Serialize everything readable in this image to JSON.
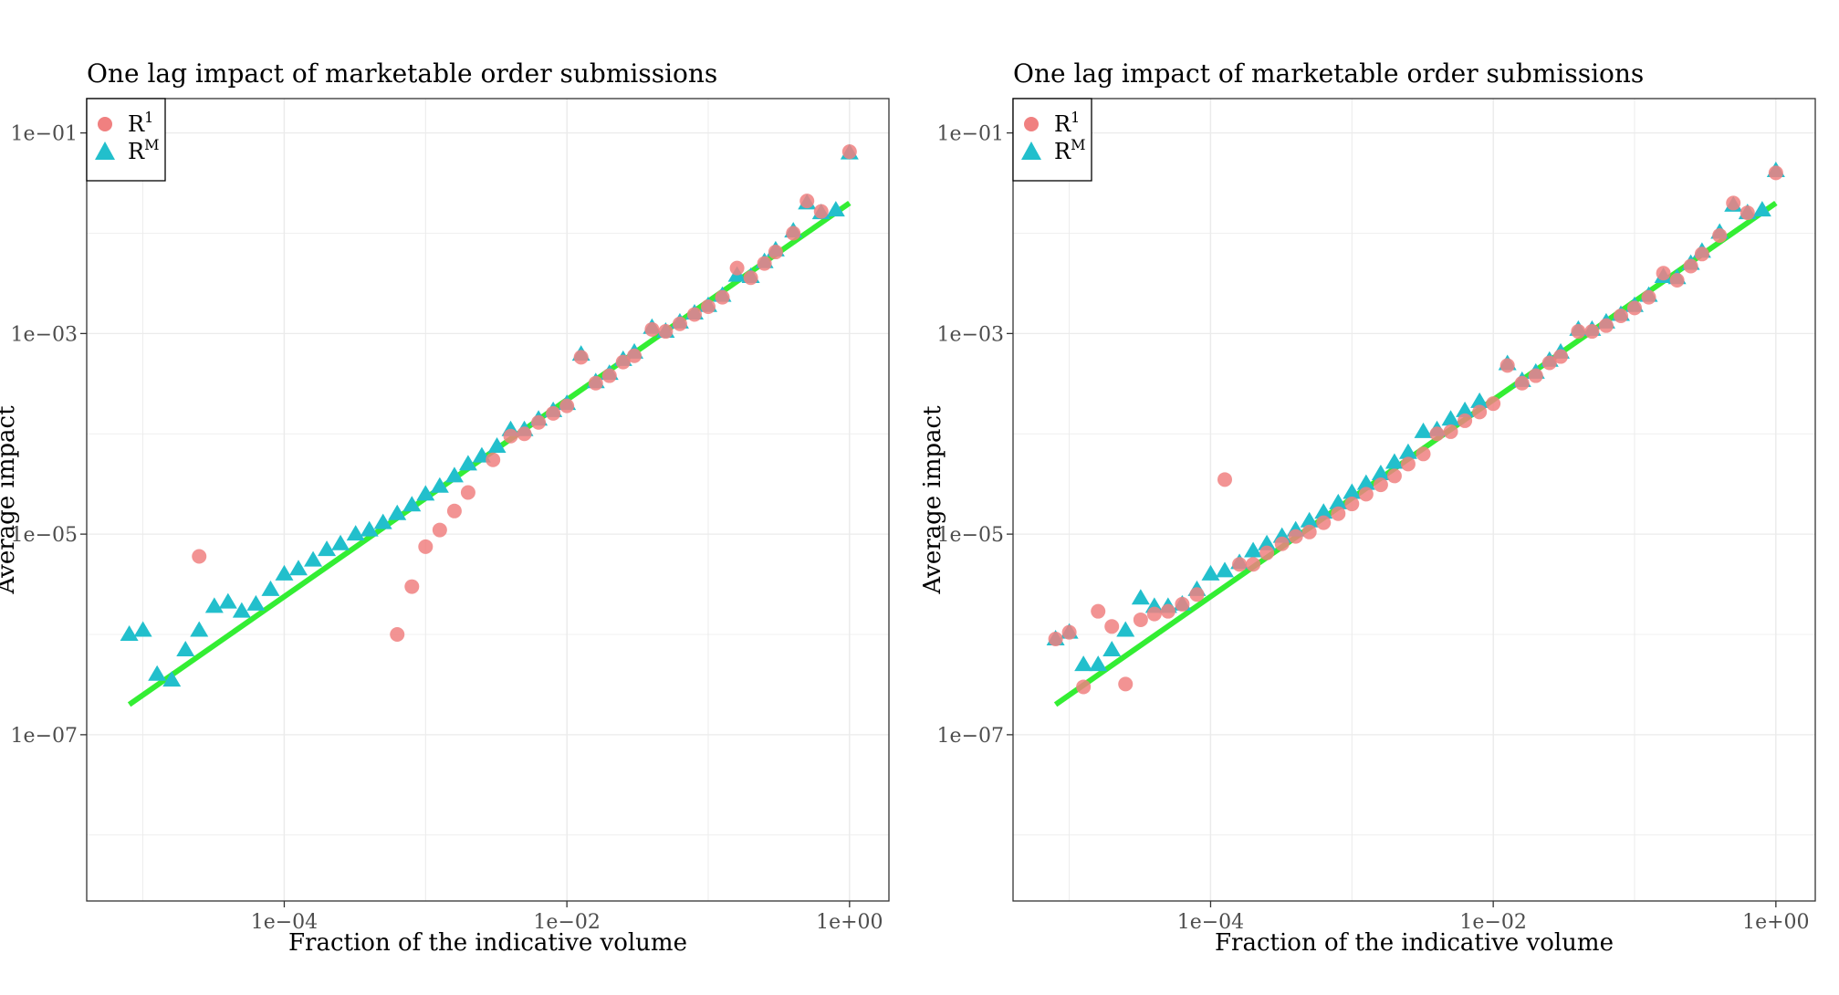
{
  "chart_data": [
    {
      "type": "scatter",
      "title": "One lag impact of marketable order submissions",
      "xlabel": "Fraction of the indicative volume",
      "ylabel": "Average impact",
      "x_scale": "log10",
      "y_scale": "log10",
      "xlim": [
        4e-06,
        1.9
      ],
      "ylim": [
        2.2e-09,
        0.22
      ],
      "x_ticks": [
        0.0001,
        0.01,
        1
      ],
      "x_tick_labels": [
        "1e−04",
        "1e−02",
        "1e+00"
      ],
      "y_ticks": [
        1e-07,
        1e-05,
        0.001,
        0.1
      ],
      "y_tick_labels": [
        "1e−07",
        "1e−05",
        "1e−03",
        "1e−01"
      ],
      "grid": true,
      "legend": {
        "position": "top-left",
        "entries": [
          {
            "base": "R",
            "sup": "1"
          },
          {
            "base": "R",
            "sup": "M"
          }
        ]
      },
      "fit_line": {
        "x": [
          8e-06,
          1.0
        ],
        "y": [
          2e-07,
          0.02
        ],
        "color": "#33ee33"
      },
      "series": [
        {
          "marker": "circle",
          "color": "#f08080",
          "points": [
            [
              2.5e-05,
              6e-06
            ],
            [
              0.00063,
              1e-06
            ],
            [
              0.0008,
              3e-06
            ],
            [
              0.001,
              7.5e-06
            ],
            [
              0.00126,
              1.1e-05
            ],
            [
              0.0016,
              1.7e-05
            ],
            [
              0.002,
              2.6e-05
            ],
            [
              0.003,
              5.5e-05
            ],
            [
              0.004,
              9.5e-05
            ],
            [
              0.005,
              0.0001
            ],
            [
              0.0063,
              0.00013
            ],
            [
              0.008,
              0.00016
            ],
            [
              0.01,
              0.00019
            ],
            [
              0.0126,
              0.00058
            ],
            [
              0.016,
              0.00032
            ],
            [
              0.02,
              0.00038
            ],
            [
              0.025,
              0.00052
            ],
            [
              0.03,
              0.0006
            ],
            [
              0.04,
              0.0011
            ],
            [
              0.05,
              0.00105
            ],
            [
              0.063,
              0.00125
            ],
            [
              0.08,
              0.00155
            ],
            [
              0.1,
              0.00185
            ],
            [
              0.126,
              0.0023
            ],
            [
              0.16,
              0.0045
            ],
            [
              0.2,
              0.0036
            ],
            [
              0.25,
              0.005
            ],
            [
              0.3,
              0.0065
            ],
            [
              0.4,
              0.01
            ],
            [
              0.5,
              0.021
            ],
            [
              0.63,
              0.0165
            ],
            [
              1.0,
              0.065
            ]
          ]
        },
        {
          "marker": "triangle",
          "color": "#22bfcc",
          "points": [
            [
              8e-06,
              1e-06
            ],
            [
              1e-05,
              1.1e-06
            ],
            [
              1.26e-05,
              4e-07
            ],
            [
              1.6e-05,
              3.5e-07
            ],
            [
              2e-05,
              7e-07
            ],
            [
              2.5e-05,
              1.1e-06
            ],
            [
              3.2e-05,
              1.9e-06
            ],
            [
              4e-05,
              2.1e-06
            ],
            [
              5e-05,
              1.7e-06
            ],
            [
              6.3e-05,
              2e-06
            ],
            [
              8e-05,
              2.8e-06
            ],
            [
              0.0001,
              4e-06
            ],
            [
              0.000126,
              4.5e-06
            ],
            [
              0.00016,
              5.5e-06
            ],
            [
              0.0002,
              7e-06
            ],
            [
              0.00025,
              8e-06
            ],
            [
              0.00032,
              1e-05
            ],
            [
              0.0004,
              1.1e-05
            ],
            [
              0.0005,
              1.3e-05
            ],
            [
              0.00063,
              1.6e-05
            ],
            [
              0.0008,
              1.95e-05
            ],
            [
              0.001,
              2.5e-05
            ],
            [
              0.00126,
              3e-05
            ],
            [
              0.0016,
              3.8e-05
            ],
            [
              0.002,
              5e-05
            ],
            [
              0.0025,
              6e-05
            ],
            [
              0.0032,
              7.5e-05
            ],
            [
              0.004,
              0.00011
            ],
            [
              0.005,
              0.00011
            ],
            [
              0.0063,
              0.00014
            ],
            [
              0.008,
              0.00017
            ],
            [
              0.01,
              0.0002
            ],
            [
              0.0126,
              0.00062
            ],
            [
              0.016,
              0.00033
            ],
            [
              0.02,
              0.0004
            ],
            [
              0.025,
              0.00055
            ],
            [
              0.03,
              0.00065
            ],
            [
              0.04,
              0.00115
            ],
            [
              0.05,
              0.00105
            ],
            [
              0.063,
              0.0013
            ],
            [
              0.08,
              0.0016
            ],
            [
              0.1,
              0.0019
            ],
            [
              0.126,
              0.0024
            ],
            [
              0.16,
              0.0038
            ],
            [
              0.2,
              0.0037
            ],
            [
              0.25,
              0.0052
            ],
            [
              0.3,
              0.0068
            ],
            [
              0.4,
              0.0105
            ],
            [
              0.5,
              0.02
            ],
            [
              0.63,
              0.016
            ],
            [
              0.8,
              0.017
            ],
            [
              1.0,
              0.063
            ]
          ]
        }
      ]
    },
    {
      "type": "scatter",
      "title": "One lag impact of marketable order submissions",
      "xlabel": "Fraction of the indicative volume",
      "ylabel": "Average impact",
      "x_scale": "log10",
      "y_scale": "log10",
      "xlim": [
        4e-06,
        1.9
      ],
      "ylim": [
        2.2e-09,
        0.22
      ],
      "x_ticks": [
        0.0001,
        0.01,
        1
      ],
      "x_tick_labels": [
        "1e−04",
        "1e−02",
        "1e+00"
      ],
      "y_ticks": [
        1e-07,
        1e-05,
        0.001,
        0.1
      ],
      "y_tick_labels": [
        "1e−07",
        "1e−05",
        "1e−03",
        "1e−01"
      ],
      "grid": true,
      "legend": {
        "position": "top-left",
        "entries": [
          {
            "base": "R",
            "sup": "1"
          },
          {
            "base": "R",
            "sup": "M"
          }
        ]
      },
      "fit_line": {
        "x": [
          8e-06,
          1.0
        ],
        "y": [
          2e-07,
          0.02
        ],
        "color": "#33ee33"
      },
      "series": [
        {
          "marker": "circle",
          "color": "#f08080",
          "points": [
            [
              8e-06,
              9e-07
            ],
            [
              1e-05,
              1.05e-06
            ],
            [
              1.26e-05,
              3e-07
            ],
            [
              1.6e-05,
              1.7e-06
            ],
            [
              2e-05,
              1.2e-06
            ],
            [
              2.5e-05,
              3.2e-07
            ],
            [
              3.2e-05,
              1.4e-06
            ],
            [
              4e-05,
              1.6e-06
            ],
            [
              5e-05,
              1.7e-06
            ],
            [
              6.3e-05,
              2e-06
            ],
            [
              8e-05,
              2.5e-06
            ],
            [
              0.000126,
              3.5e-05
            ],
            [
              0.00016,
              5e-06
            ],
            [
              0.0002,
              5e-06
            ],
            [
              0.00025,
              6.5e-06
            ],
            [
              0.00032,
              8e-06
            ],
            [
              0.0004,
              9.5e-06
            ],
            [
              0.0005,
              1.05e-05
            ],
            [
              0.00063,
              1.3e-05
            ],
            [
              0.0008,
              1.6e-05
            ],
            [
              0.001,
              2e-05
            ],
            [
              0.00126,
              2.5e-05
            ],
            [
              0.0016,
              3.1e-05
            ],
            [
              0.002,
              3.8e-05
            ],
            [
              0.0025,
              5e-05
            ],
            [
              0.0032,
              6.3e-05
            ],
            [
              0.004,
              0.0001
            ],
            [
              0.005,
              0.000105
            ],
            [
              0.0063,
              0.000135
            ],
            [
              0.008,
              0.000165
            ],
            [
              0.01,
              0.0002
            ],
            [
              0.0126,
              0.00048
            ],
            [
              0.016,
              0.00032
            ],
            [
              0.02,
              0.00038
            ],
            [
              0.025,
              0.00051
            ],
            [
              0.03,
              0.00059
            ],
            [
              0.04,
              0.00105
            ],
            [
              0.05,
              0.00105
            ],
            [
              0.063,
              0.0012
            ],
            [
              0.08,
              0.0015
            ],
            [
              0.1,
              0.0018
            ],
            [
              0.126,
              0.0023
            ],
            [
              0.16,
              0.004
            ],
            [
              0.2,
              0.0034
            ],
            [
              0.25,
              0.0047
            ],
            [
              0.3,
              0.0062
            ],
            [
              0.4,
              0.0095
            ],
            [
              0.5,
              0.02
            ],
            [
              0.63,
              0.016
            ],
            [
              1.0,
              0.04
            ]
          ]
        },
        {
          "marker": "triangle",
          "color": "#22bfcc",
          "points": [
            [
              8e-06,
              9e-07
            ],
            [
              1e-05,
              1.05e-06
            ],
            [
              1.26e-05,
              5e-07
            ],
            [
              1.6e-05,
              5e-07
            ],
            [
              2e-05,
              7e-07
            ],
            [
              2.5e-05,
              1.1e-06
            ],
            [
              3.2e-05,
              2.3e-06
            ],
            [
              4e-05,
              1.9e-06
            ],
            [
              5e-05,
              1.9e-06
            ],
            [
              6.3e-05,
              2e-06
            ],
            [
              8e-05,
              2.8e-06
            ],
            [
              0.0001,
              4e-06
            ],
            [
              0.000126,
              4.3e-06
            ],
            [
              0.00016,
              5.2e-06
            ],
            [
              0.0002,
              6.8e-06
            ],
            [
              0.00025,
              8e-06
            ],
            [
              0.00032,
              9.5e-06
            ],
            [
              0.0004,
              1.1e-05
            ],
            [
              0.0005,
              1.35e-05
            ],
            [
              0.00063,
              1.65e-05
            ],
            [
              0.0008,
              2.05e-05
            ],
            [
              0.001,
              2.6e-05
            ],
            [
              0.00126,
              3.2e-05
            ],
            [
              0.0016,
              4e-05
            ],
            [
              0.002,
              5.2e-05
            ],
            [
              0.0025,
              6.5e-05
            ],
            [
              0.0032,
              0.000105
            ],
            [
              0.004,
              0.00011
            ],
            [
              0.005,
              0.00014
            ],
            [
              0.0063,
              0.00017
            ],
            [
              0.008,
              0.00021
            ],
            [
              0.0126,
              0.0005
            ],
            [
              0.016,
              0.00034
            ],
            [
              0.02,
              0.00041
            ],
            [
              0.025,
              0.00054
            ],
            [
              0.03,
              0.00065
            ],
            [
              0.04,
              0.0011
            ],
            [
              0.05,
              0.0011
            ],
            [
              0.063,
              0.0013
            ],
            [
              0.08,
              0.00155
            ],
            [
              0.1,
              0.0019
            ],
            [
              0.126,
              0.0024
            ],
            [
              0.16,
              0.0037
            ],
            [
              0.2,
              0.0036
            ],
            [
              0.25,
              0.005
            ],
            [
              0.3,
              0.0066
            ],
            [
              0.4,
              0.0102
            ],
            [
              0.5,
              0.019
            ],
            [
              0.63,
              0.016
            ],
            [
              0.8,
              0.017
            ],
            [
              1.0,
              0.042
            ]
          ]
        }
      ]
    }
  ]
}
